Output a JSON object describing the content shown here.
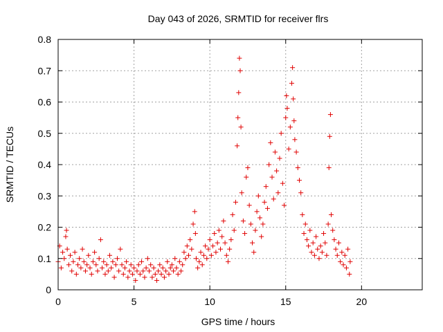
{
  "chart_data": {
    "type": "scatter",
    "title": "Day 043 of 2026, SRMTID for receiver flrs",
    "xlabel": "GPS time / hours",
    "ylabel": "SRMTID / TECUs",
    "xlim": [
      0,
      24
    ],
    "ylim": [
      0,
      0.8
    ],
    "x_ticks": [
      0,
      5,
      10,
      15,
      20
    ],
    "x_tick_labels": [
      "0",
      "5",
      "10",
      "15",
      "20"
    ],
    "y_ticks": [
      0,
      0.1,
      0.2,
      0.3,
      0.4,
      0.5,
      0.6,
      0.7,
      0.8
    ],
    "y_tick_labels": [
      "0",
      "0.1",
      "0.2",
      "0.3",
      "0.4",
      "0.5",
      "0.6",
      "0.7",
      "0.8"
    ],
    "grid": true,
    "marker": "+",
    "color": "#e00000",
    "series": [
      {
        "name": "flrs",
        "points": [
          [
            0.0,
            0.09
          ],
          [
            0.1,
            0.14
          ],
          [
            0.2,
            0.07
          ],
          [
            0.3,
            0.12
          ],
          [
            0.4,
            0.1
          ],
          [
            0.5,
            0.17
          ],
          [
            0.55,
            0.19
          ],
          [
            0.6,
            0.13
          ],
          [
            0.7,
            0.08
          ],
          [
            0.8,
            0.11
          ],
          [
            0.9,
            0.06
          ],
          [
            1.0,
            0.09
          ],
          [
            1.1,
            0.12
          ],
          [
            1.2,
            0.05
          ],
          [
            1.3,
            0.08
          ],
          [
            1.4,
            0.1
          ],
          [
            1.5,
            0.07
          ],
          [
            1.6,
            0.13
          ],
          [
            1.7,
            0.09
          ],
          [
            1.8,
            0.06
          ],
          [
            1.9,
            0.08
          ],
          [
            2.0,
            0.11
          ],
          [
            2.1,
            0.07
          ],
          [
            2.2,
            0.05
          ],
          [
            2.3,
            0.09
          ],
          [
            2.4,
            0.12
          ],
          [
            2.5,
            0.08
          ],
          [
            2.6,
            0.06
          ],
          [
            2.7,
            0.1
          ],
          [
            2.8,
            0.16
          ],
          [
            2.9,
            0.07
          ],
          [
            3.0,
            0.09
          ],
          [
            3.1,
            0.05
          ],
          [
            3.2,
            0.08
          ],
          [
            3.3,
            0.06
          ],
          [
            3.4,
            0.11
          ],
          [
            3.5,
            0.07
          ],
          [
            3.6,
            0.09
          ],
          [
            3.7,
            0.04
          ],
          [
            3.8,
            0.08
          ],
          [
            3.9,
            0.1
          ],
          [
            4.0,
            0.06
          ],
          [
            4.1,
            0.13
          ],
          [
            4.2,
            0.08
          ],
          [
            4.3,
            0.05
          ],
          [
            4.4,
            0.07
          ],
          [
            4.5,
            0.09
          ],
          [
            4.6,
            0.04
          ],
          [
            4.7,
            0.06
          ],
          [
            4.8,
            0.08
          ],
          [
            4.9,
            0.05
          ],
          [
            5.0,
            0.07
          ],
          [
            5.1,
            0.03
          ],
          [
            5.2,
            0.06
          ],
          [
            5.3,
            0.08
          ],
          [
            5.4,
            0.05
          ],
          [
            5.5,
            0.09
          ],
          [
            5.6,
            0.06
          ],
          [
            5.7,
            0.04
          ],
          [
            5.8,
            0.07
          ],
          [
            5.9,
            0.1
          ],
          [
            6.0,
            0.06
          ],
          [
            6.1,
            0.08
          ],
          [
            6.2,
            0.04
          ],
          [
            6.3,
            0.07
          ],
          [
            6.4,
            0.05
          ],
          [
            6.5,
            0.03
          ],
          [
            6.6,
            0.06
          ],
          [
            6.7,
            0.08
          ],
          [
            6.8,
            0.05
          ],
          [
            6.9,
            0.07
          ],
          [
            7.0,
            0.04
          ],
          [
            7.1,
            0.06
          ],
          [
            7.2,
            0.09
          ],
          [
            7.3,
            0.05
          ],
          [
            7.4,
            0.07
          ],
          [
            7.5,
            0.08
          ],
          [
            7.6,
            0.06
          ],
          [
            7.7,
            0.1
          ],
          [
            7.8,
            0.07
          ],
          [
            7.9,
            0.05
          ],
          [
            8.0,
            0.09
          ],
          [
            8.1,
            0.06
          ],
          [
            8.2,
            0.08
          ],
          [
            8.3,
            0.12
          ],
          [
            8.4,
            0.1
          ],
          [
            8.5,
            0.14
          ],
          [
            8.6,
            0.11
          ],
          [
            8.7,
            0.16
          ],
          [
            8.8,
            0.13
          ],
          [
            8.9,
            0.21
          ],
          [
            9.0,
            0.25
          ],
          [
            9.05,
            0.18
          ],
          [
            9.1,
            0.1
          ],
          [
            9.2,
            0.07
          ],
          [
            9.3,
            0.09
          ],
          [
            9.4,
            0.12
          ],
          [
            9.5,
            0.08
          ],
          [
            9.6,
            0.11
          ],
          [
            9.7,
            0.14
          ],
          [
            9.8,
            0.1
          ],
          [
            9.9,
            0.13
          ],
          [
            10.0,
            0.16
          ],
          [
            10.1,
            0.11
          ],
          [
            10.2,
            0.14
          ],
          [
            10.3,
            0.18
          ],
          [
            10.4,
            0.12
          ],
          [
            10.5,
            0.15
          ],
          [
            10.6,
            0.19
          ],
          [
            10.7,
            0.13
          ],
          [
            10.8,
            0.17
          ],
          [
            10.9,
            0.22
          ],
          [
            11.0,
            0.15
          ],
          [
            11.1,
            0.11
          ],
          [
            11.2,
            0.09
          ],
          [
            11.3,
            0.13
          ],
          [
            11.4,
            0.16
          ],
          [
            11.5,
            0.24
          ],
          [
            11.6,
            0.19
          ],
          [
            11.7,
            0.28
          ],
          [
            11.8,
            0.46
          ],
          [
            11.85,
            0.55
          ],
          [
            11.9,
            0.63
          ],
          [
            11.95,
            0.74
          ],
          [
            12.0,
            0.7
          ],
          [
            12.05,
            0.52
          ],
          [
            12.1,
            0.31
          ],
          [
            12.2,
            0.22
          ],
          [
            12.3,
            0.18
          ],
          [
            12.4,
            0.36
          ],
          [
            12.5,
            0.39
          ],
          [
            12.6,
            0.27
          ],
          [
            12.7,
            0.21
          ],
          [
            12.8,
            0.15
          ],
          [
            12.9,
            0.12
          ],
          [
            13.0,
            0.19
          ],
          [
            13.1,
            0.25
          ],
          [
            13.2,
            0.3
          ],
          [
            13.3,
            0.23
          ],
          [
            13.4,
            0.17
          ],
          [
            13.5,
            0.21
          ],
          [
            13.6,
            0.28
          ],
          [
            13.7,
            0.33
          ],
          [
            13.8,
            0.26
          ],
          [
            13.9,
            0.4
          ],
          [
            14.0,
            0.47
          ],
          [
            14.1,
            0.36
          ],
          [
            14.2,
            0.29
          ],
          [
            14.3,
            0.44
          ],
          [
            14.4,
            0.38
          ],
          [
            14.5,
            0.31
          ],
          [
            14.6,
            0.42
          ],
          [
            14.7,
            0.5
          ],
          [
            14.8,
            0.34
          ],
          [
            14.9,
            0.27
          ],
          [
            15.0,
            0.55
          ],
          [
            15.05,
            0.62
          ],
          [
            15.1,
            0.58
          ],
          [
            15.2,
            0.45
          ],
          [
            15.3,
            0.52
          ],
          [
            15.4,
            0.66
          ],
          [
            15.45,
            0.71
          ],
          [
            15.5,
            0.61
          ],
          [
            15.55,
            0.54
          ],
          [
            15.6,
            0.48
          ],
          [
            15.7,
            0.44
          ],
          [
            15.8,
            0.39
          ],
          [
            15.9,
            0.35
          ],
          [
            16.0,
            0.31
          ],
          [
            16.1,
            0.24
          ],
          [
            16.2,
            0.18
          ],
          [
            16.3,
            0.21
          ],
          [
            16.4,
            0.16
          ],
          [
            16.5,
            0.14
          ],
          [
            16.6,
            0.19
          ],
          [
            16.7,
            0.12
          ],
          [
            16.8,
            0.15
          ],
          [
            16.9,
            0.11
          ],
          [
            17.0,
            0.17
          ],
          [
            17.1,
            0.13
          ],
          [
            17.2,
            0.1
          ],
          [
            17.3,
            0.14
          ],
          [
            17.4,
            0.12
          ],
          [
            17.5,
            0.18
          ],
          [
            17.6,
            0.15
          ],
          [
            17.7,
            0.11
          ],
          [
            17.8,
            0.21
          ],
          [
            17.85,
            0.39
          ],
          [
            17.9,
            0.49
          ],
          [
            17.95,
            0.56
          ],
          [
            18.0,
            0.24
          ],
          [
            18.1,
            0.19
          ],
          [
            18.2,
            0.16
          ],
          [
            18.3,
            0.13
          ],
          [
            18.4,
            0.11
          ],
          [
            18.5,
            0.15
          ],
          [
            18.6,
            0.09
          ],
          [
            18.7,
            0.12
          ],
          [
            18.8,
            0.08
          ],
          [
            18.9,
            0.11
          ],
          [
            19.0,
            0.07
          ],
          [
            19.1,
            0.13
          ],
          [
            19.2,
            0.05
          ],
          [
            19.25,
            0.09
          ]
        ]
      }
    ]
  }
}
